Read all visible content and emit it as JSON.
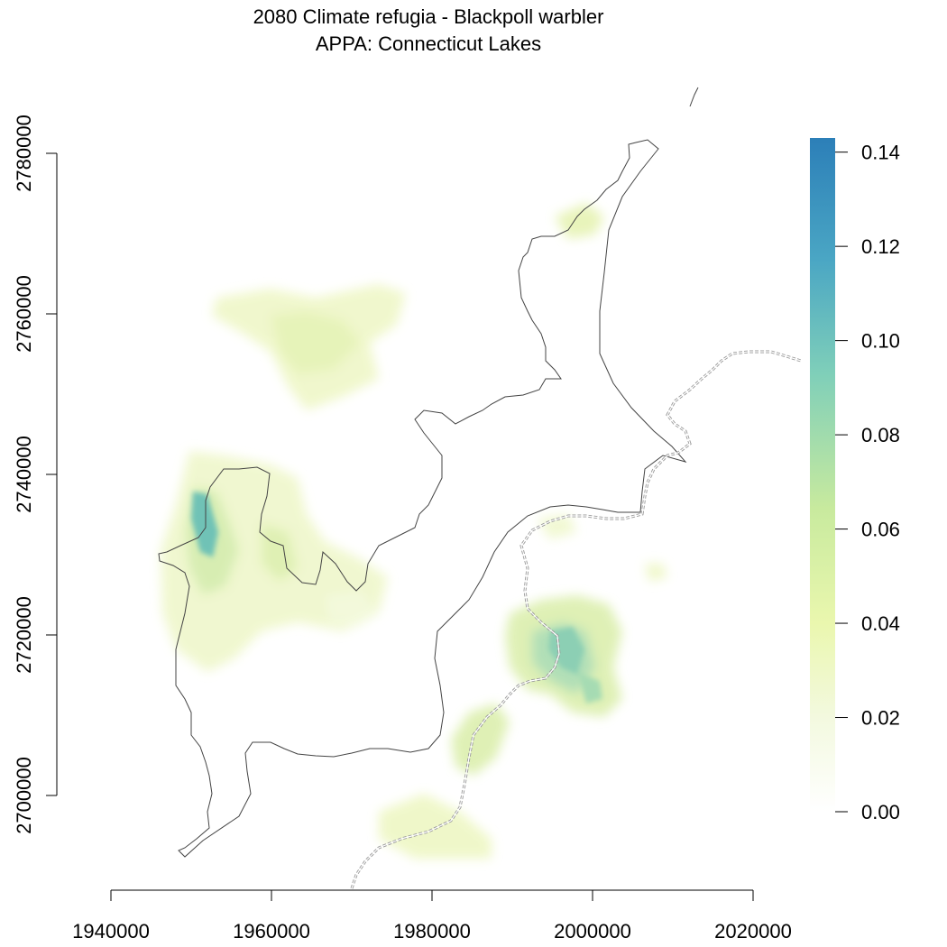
{
  "title": {
    "line1": "2080 Climate refugia - Blackpoll warbler",
    "line2": "APPA: Connecticut Lakes"
  },
  "map": {
    "x_ticks": [
      "1940000",
      "1960000",
      "1980000",
      "2000000",
      "2020000"
    ],
    "y_ticks": [
      "2700000",
      "2720000",
      "2740000",
      "2760000",
      "2780000"
    ],
    "xlim": [
      1940000,
      2020000
    ],
    "ylim": [
      2700000,
      2780000
    ]
  },
  "legend": {
    "ticks": [
      "0.00",
      "0.02",
      "0.04",
      "0.06",
      "0.08",
      "0.10",
      "0.12",
      "0.14"
    ],
    "range": [
      0,
      0.143
    ],
    "colors": [
      "#ffffff",
      "#f3f9df",
      "#eaf7ae",
      "#c8ea9e",
      "#7fcfb9",
      "#4aa6c4",
      "#2c7fb8"
    ]
  },
  "chart_data": {
    "type": "heatmap",
    "title": "2080 Climate refugia - Blackpoll warbler\nAPPA: Connecticut Lakes",
    "xlabel": "",
    "ylabel": "",
    "xlim": [
      1940000,
      2020000
    ],
    "ylim": [
      2700000,
      2780000
    ],
    "value_range": [
      0,
      0.143
    ],
    "colorbar_ticks": [
      0,
      0.02,
      0.04,
      0.06,
      0.08,
      0.1,
      0.12,
      0.14
    ],
    "grid": false,
    "legend": "right"
  }
}
